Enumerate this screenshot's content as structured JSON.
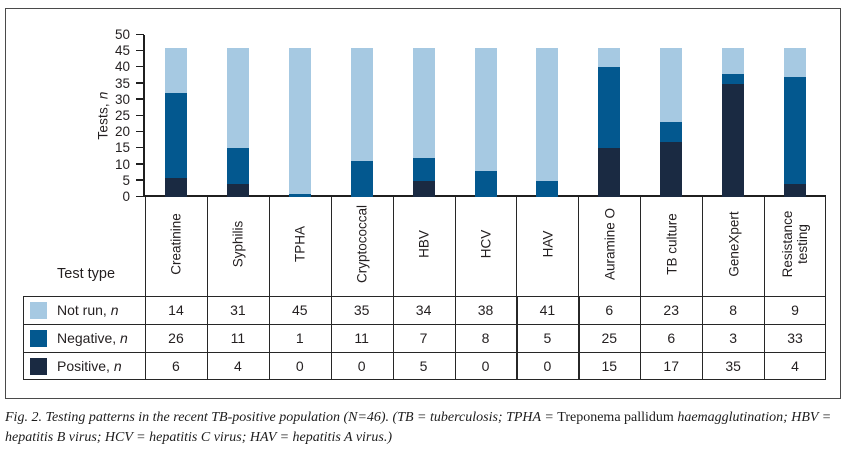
{
  "figure": {
    "y_axis_label": {
      "text": "Tests, ",
      "italic": "n"
    },
    "y_ticks": [
      50,
      45,
      40,
      35,
      30,
      25,
      20,
      15,
      10,
      5,
      0
    ],
    "test_type_header": "Test type"
  },
  "chart_data": {
    "type": "bar",
    "stacked": true,
    "title": "",
    "xlabel": "Test type",
    "ylabel": "Tests, n",
    "ylim": [
      0,
      50
    ],
    "ytick_step": 5,
    "grid": false,
    "legend_position": "table-rows-bottom-left",
    "stack_total": 46,
    "categories": [
      "Creatinine",
      "Syphilis",
      "TPHA",
      "Cryptococcal",
      "HBV",
      "HCV",
      "HAV",
      "Auramine O",
      "TB culture",
      "GeneXpert",
      "Resistance testing"
    ],
    "series": [
      {
        "name": "Positive, n",
        "key": "positive",
        "color": "#1a2a42",
        "values": [
          6,
          4,
          0,
          0,
          5,
          0,
          0,
          15,
          17,
          35,
          4
        ]
      },
      {
        "name": "Negative, n",
        "key": "negative",
        "color": "#03588f",
        "values": [
          26,
          11,
          1,
          11,
          7,
          8,
          5,
          25,
          6,
          3,
          33
        ]
      },
      {
        "name": "Not run, n",
        "key": "not-run",
        "color": "#a6c9e2",
        "values": [
          14,
          31,
          45,
          35,
          34,
          38,
          41,
          6,
          23,
          8,
          9
        ]
      }
    ]
  },
  "table": {
    "row_order": [
      "Not run, n",
      "Negative, n",
      "Positive, n"
    ]
  },
  "caption": {
    "part1": "Fig. 2. Testing patterns in the recent TB-positive population (N=46). (TB = tuberculosis; TPHA = ",
    "species": "Treponema pallidum",
    "part2": " haemagglutination; HBV = hepatitis B virus; HCV = hepatitis C virus; HAV = hepatitis A virus.)"
  },
  "colors": {
    "not_run": "#a6c9e2",
    "negative": "#03588f",
    "positive": "#1a2a42",
    "axis_line": "#1f1f1f",
    "table_line": "#272727",
    "frame_border": "#4a4a4a",
    "text": "#231f20"
  }
}
